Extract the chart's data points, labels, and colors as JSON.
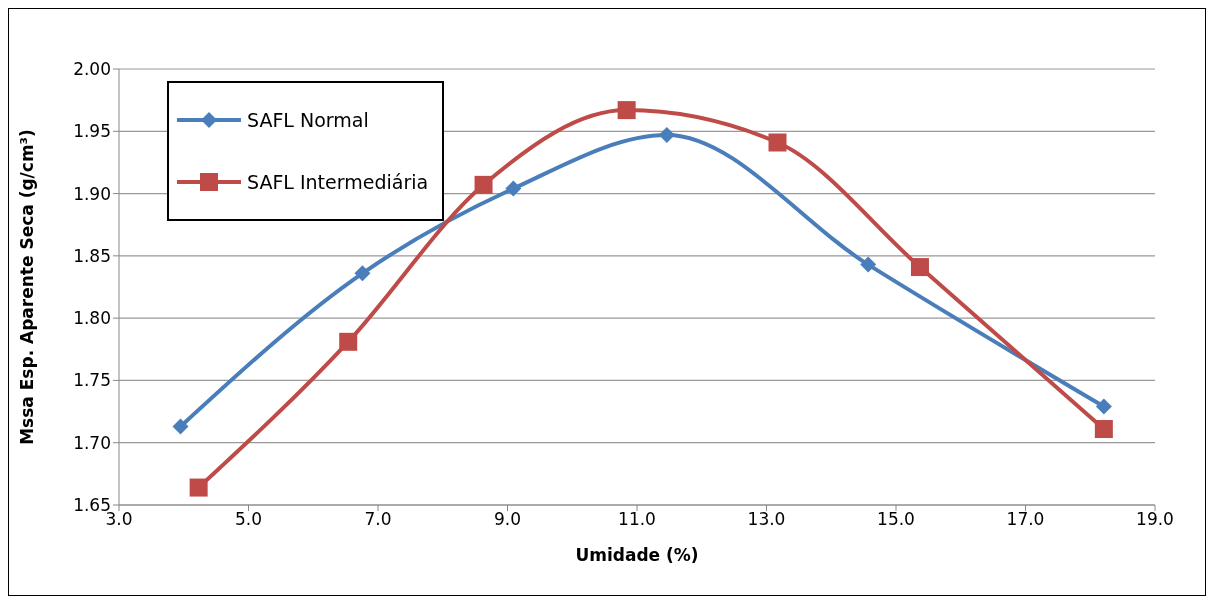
{
  "chart_data": {
    "type": "line",
    "xlabel": "Umidade (%)",
    "ylabel": "Mssa Esp. Aparente Seca (g/cm³)",
    "series": [
      {
        "name": "SAFL Normal",
        "color": "#4a7ebb",
        "marker": "diamond",
        "x": [
          3.95,
          6.76,
          9.09,
          11.46,
          14.57,
          18.21
        ],
        "values": [
          1.713,
          1.836,
          1.904,
          1.947,
          1.843,
          1.729
        ]
      },
      {
        "name": "SAFL Intermediária",
        "color": "#be4b48",
        "marker": "square",
        "x": [
          4.23,
          6.54,
          8.63,
          10.84,
          13.17,
          15.37,
          18.21
        ],
        "values": [
          1.664,
          1.781,
          1.907,
          1.967,
          1.941,
          1.841,
          1.711
        ]
      }
    ],
    "xlim": [
      3,
      19
    ],
    "xticks": [
      {
        "value": 3,
        "label": "3.0"
      },
      {
        "value": 5,
        "label": "5.0"
      },
      {
        "value": 7,
        "label": "7.0"
      },
      {
        "value": 9,
        "label": "9.0"
      },
      {
        "value": 11,
        "label": "11.0"
      },
      {
        "value": 13,
        "label": "13.0"
      },
      {
        "value": 15,
        "label": "15.0"
      },
      {
        "value": 17,
        "label": "17.0"
      },
      {
        "value": 19,
        "label": "19.0"
      }
    ],
    "ylim": [
      1.65,
      2.0
    ],
    "yticks": [
      1.65,
      {
        "value": 1.7,
        "label": "1.70"
      },
      1.75,
      {
        "value": 1.8,
        "label": "1.80"
      },
      1.85,
      {
        "value": 1.9,
        "label": "1.90"
      },
      1.95,
      {
        "value": 2.0,
        "label": "2.00"
      }
    ],
    "grid": "y",
    "legend": "top left",
    "line_style": "solid"
  }
}
